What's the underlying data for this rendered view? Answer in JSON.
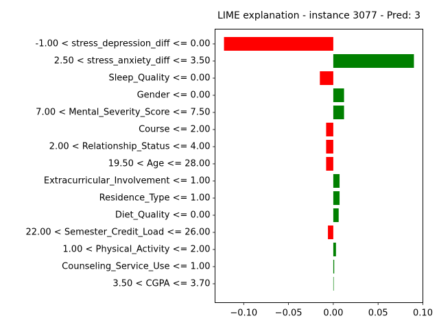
{
  "chart_data": {
    "type": "bar",
    "orientation": "horizontal",
    "title": "LIME explanation - instance 3077 - Pred: 3",
    "xlabel": "",
    "ylabel": "",
    "xlim": [
      -0.132,
      0.1
    ],
    "xticks": [
      -0.1,
      -0.05,
      0.0,
      0.05,
      0.1
    ],
    "xtick_labels": [
      "−0.10",
      "−0.05",
      "0.00",
      "0.05",
      "0.10"
    ],
    "grid": false,
    "legend": "none",
    "positive_color": "#008000",
    "negative_color": "#ff0000",
    "categories": [
      "-1.00 < stress_depression_diff <= 0.00",
      "2.50 < stress_anxiety_diff <= 3.50",
      "Sleep_Quality <= 0.00",
      "Gender <= 0.00",
      "7.00 < Mental_Severity_Score <= 7.50",
      "Course <= 2.00",
      "2.00 < Relationship_Status <= 4.00",
      "19.50 < Age <= 28.00",
      "Extracurricular_Involvement <= 1.00",
      "Residence_Type <= 1.00",
      "Diet_Quality <= 0.00",
      "22.00 < Semester_Credit_Load <= 26.00",
      "1.00 < Physical_Activity <= 2.00",
      "Counseling_Service_Use <= 1.00",
      "3.50 < CGPA <= 3.70"
    ],
    "values": [
      -0.122,
      0.09,
      -0.015,
      0.012,
      0.012,
      -0.008,
      -0.008,
      -0.008,
      0.007,
      0.007,
      0.006,
      -0.006,
      0.003,
      0.001,
      0.0005
    ]
  }
}
